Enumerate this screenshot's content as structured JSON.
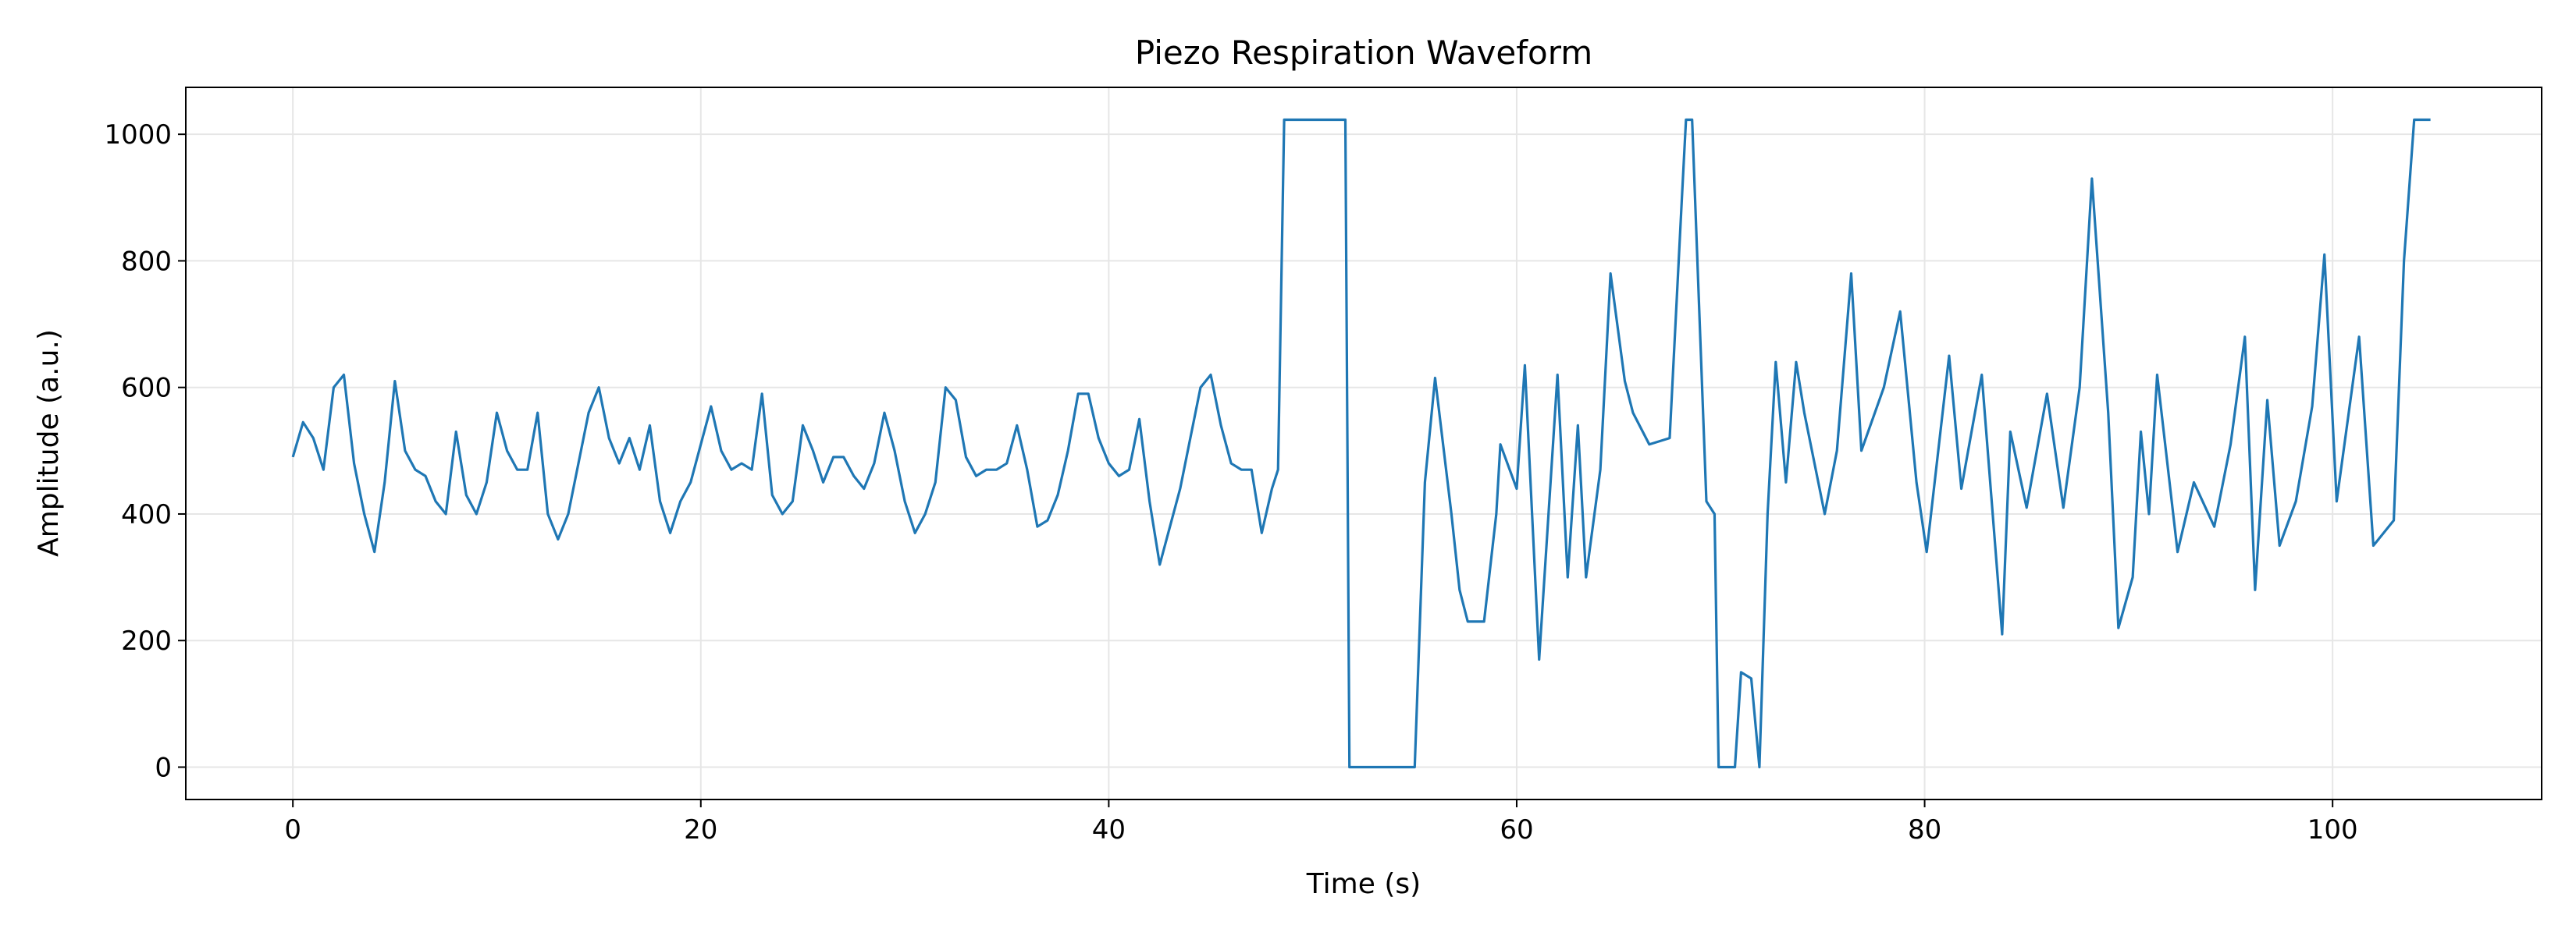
{
  "chart_data": {
    "type": "line",
    "title": "Piezo Respiration Waveform",
    "xlabel": "Time (s)",
    "ylabel": "Amplitude (a.u.)",
    "x": [
      0,
      0.5,
      1,
      1.5,
      2,
      2.5,
      3,
      3.5,
      4,
      4.5,
      5,
      5.5,
      6,
      6.5,
      7,
      7.5,
      8,
      8.5,
      9,
      9.5,
      10,
      10.5,
      11,
      11.5,
      12,
      12.5,
      13,
      13.5,
      14,
      14.5,
      15,
      15.5,
      16,
      16.5,
      17,
      17.5,
      18,
      18.5,
      19,
      19.5,
      20,
      20.5,
      21,
      21.5,
      22,
      22.5,
      23,
      23.5,
      24,
      24.5,
      25,
      25.5,
      26,
      26.5,
      27,
      27.5,
      28,
      28.5,
      29,
      29.5,
      30,
      30.5,
      31,
      31.5,
      32,
      32.5,
      33,
      33.5,
      34,
      34.5,
      35,
      35.5,
      36,
      36.5,
      37,
      37.5,
      38,
      38.5,
      39,
      39.5,
      40,
      40.5,
      41,
      41.5,
      42,
      42.5,
      43,
      43.5,
      44,
      44.5,
      45,
      45.5,
      46,
      46.5,
      47,
      47.5,
      48,
      48.3,
      48.6,
      49.5,
      50.5,
      51.6,
      51.8,
      52.5,
      53.5,
      54.5,
      55,
      55.5,
      56,
      56.8,
      57.2,
      57.6,
      58.4,
      59,
      59.2,
      60,
      60.4,
      61.1,
      62,
      62.5,
      63,
      63.4,
      64.1,
      64.6,
      65.3,
      65.7,
      66.5,
      67.5,
      68.1,
      68.3,
      68.6,
      69.3,
      69.7,
      69.9,
      70.7,
      71,
      71.5,
      71.9,
      72.3,
      72.7,
      73.2,
      73.7,
      74.1,
      75.1,
      75.7,
      76.4,
      76.9,
      78,
      78.8,
      79.6,
      80.1,
      81.2,
      81.8,
      82.8,
      83.8,
      84.2,
      85,
      86,
      86.8,
      87.6,
      88.2,
      89,
      89.5,
      90.2,
      90.6,
      91,
      91.4,
      92.4,
      93.2,
      94.2,
      95,
      95.7,
      96.2,
      96.8,
      97.4,
      98.2,
      99,
      99.6,
      100.2,
      101.3,
      102,
      103,
      103.5,
      104,
      104.8
    ],
    "series": [
      {
        "name": "Piezo",
        "color": "#1f77b4",
        "values": [
          490,
          545,
          520,
          470,
          600,
          620,
          480,
          400,
          340,
          450,
          610,
          500,
          470,
          460,
          420,
          400,
          530,
          430,
          400,
          450,
          560,
          500,
          470,
          470,
          560,
          400,
          360,
          400,
          480,
          560,
          600,
          520,
          480,
          520,
          470,
          540,
          420,
          370,
          420,
          450,
          510,
          570,
          500,
          470,
          480,
          470,
          590,
          430,
          400,
          420,
          540,
          500,
          450,
          490,
          490,
          460,
          440,
          480,
          560,
          500,
          420,
          370,
          400,
          450,
          600,
          580,
          490,
          460,
          470,
          470,
          480,
          540,
          470,
          380,
          390,
          430,
          500,
          590,
          590,
          520,
          480,
          460,
          470,
          550,
          420,
          320,
          380,
          440,
          520,
          600,
          620,
          540,
          480,
          470,
          470,
          370,
          440,
          470,
          1023,
          1023,
          1023,
          1023,
          0,
          0,
          0,
          0,
          0,
          450,
          615,
          400,
          280,
          230,
          230,
          400,
          510,
          440,
          635,
          170,
          620,
          300,
          540,
          300,
          470,
          780,
          610,
          560,
          510,
          520,
          900,
          1023,
          1023,
          420,
          400,
          0,
          0,
          150,
          140,
          0,
          400,
          640,
          450,
          640,
          560,
          400,
          500,
          780,
          500,
          600,
          720,
          450,
          340,
          650,
          440,
          620,
          210,
          530,
          410,
          590,
          410,
          600,
          930,
          560,
          220,
          300,
          530,
          400,
          620,
          340,
          450,
          380,
          510,
          680,
          280,
          580,
          350,
          420,
          570,
          810,
          420,
          680,
          350,
          390,
          800,
          1023,
          1023
        ]
      }
    ],
    "xlim": [
      -5.25,
      110.25
    ],
    "ylim": [
      -51.15,
      1074.15
    ],
    "xticks": [
      0,
      20,
      40,
      60,
      80,
      100
    ],
    "yticks": [
      0,
      200,
      400,
      600,
      800,
      1000
    ],
    "grid": true
  }
}
